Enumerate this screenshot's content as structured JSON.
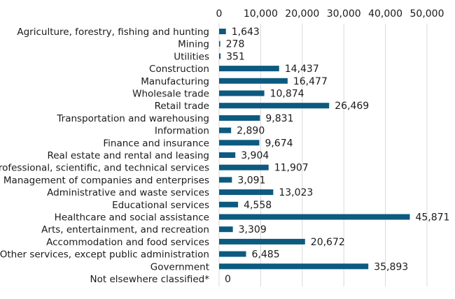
{
  "chart_data": {
    "type": "bar",
    "orientation": "horizontal",
    "categories": [
      "Agriculture, forestry, fishing and hunting",
      "Mining",
      "Utilities",
      "Construction",
      "Manufacturing",
      "Wholesale trade",
      "Retail trade",
      "Transportation and warehousing",
      "Information",
      "Finance and insurance",
      "Real estate and rental and leasing",
      "Professional, scientific, and technical services",
      "Management of companies and enterprises",
      "Administrative and waste services",
      "Educational services",
      "Healthcare and social assistance",
      "Arts, entertainment, and recreation",
      "Accommodation and food services",
      "Other services, except public administration",
      "Government",
      "Not elsewhere classified*"
    ],
    "values": [
      1643,
      278,
      351,
      14437,
      16477,
      10874,
      26469,
      9831,
      2890,
      9674,
      3904,
      11907,
      3091,
      13023,
      4558,
      45871,
      3309,
      20672,
      6485,
      35893,
      0
    ],
    "value_labels": [
      "1,643",
      "278",
      "351",
      "14,437",
      "16,477",
      "10,874",
      "26,469",
      "9,831",
      "2,890",
      "9,674",
      "3,904",
      "11,907",
      "3,091",
      "13,023",
      "4,558",
      "45,871",
      "3,309",
      "20,672",
      "6,485",
      "35,893",
      "0"
    ],
    "xticks": [
      0,
      10000,
      20000,
      30000,
      40000,
      50000
    ],
    "xtick_labels": [
      "0",
      "10,000",
      "20,000",
      "30,000",
      "40,000",
      "50,000"
    ],
    "xlim": [
      0,
      50000
    ],
    "xaxis_position": "top",
    "gridlines": true,
    "bar_color": "#0d5a80",
    "grid_color": "#d9d9d9",
    "title": "",
    "xlabel": "",
    "ylabel": ""
  }
}
